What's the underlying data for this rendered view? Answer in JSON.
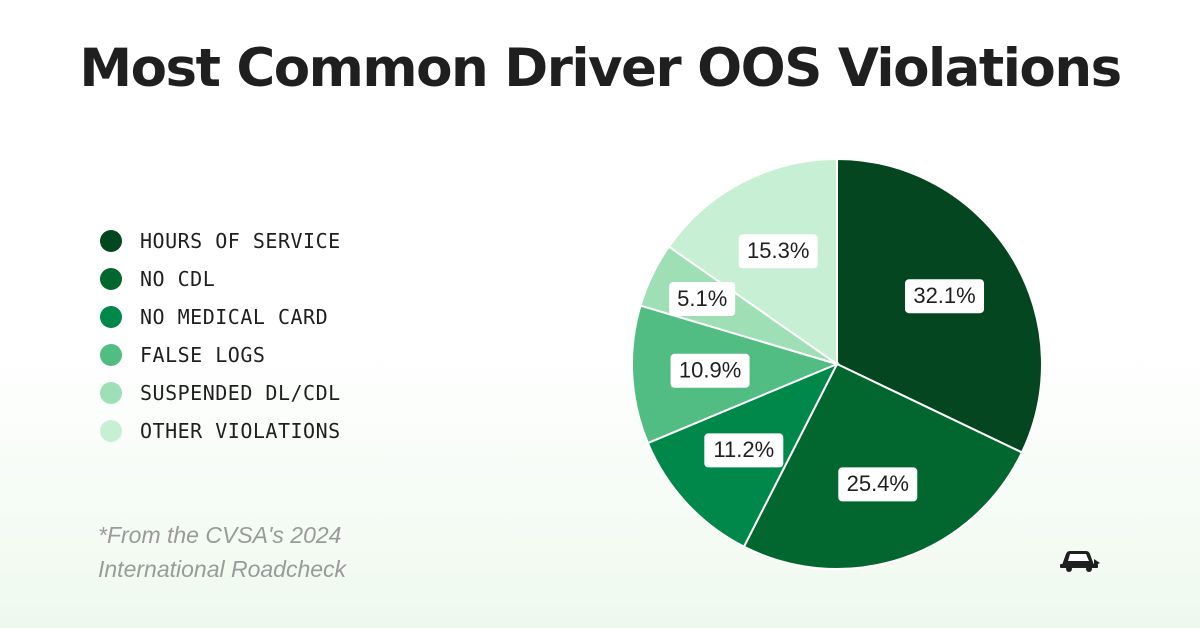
{
  "title": "Most Common Driver OOS Violations",
  "footnote": "*From the CVSA's 2024 International Roadcheck",
  "chart_data": {
    "type": "pie",
    "title": "Most Common Driver OOS Violations",
    "legend_position": "left",
    "slices": [
      {
        "name": "HOURS OF SERVICE",
        "value": 32.1,
        "label": "32.1%",
        "color": "#03461f"
      },
      {
        "name": "NO CDL",
        "value": 25.4,
        "label": "25.4%",
        "color": "#02672f"
      },
      {
        "name": "NO MEDICAL CARD",
        "value": 11.2,
        "label": "11.2%",
        "color": "#00874a"
      },
      {
        "name": "FALSE LOGS",
        "value": 10.9,
        "label": "10.9%",
        "color": "#52bd82"
      },
      {
        "name": "SUSPENDED DL/CDL",
        "value": 5.1,
        "label": "5.1%",
        "color": "#9edfb6"
      },
      {
        "name": "OTHER VIOLATIONS",
        "value": 15.3,
        "label": "15.3%",
        "color": "#c6efd4"
      }
    ]
  },
  "logo_icon": "truck-logo-icon"
}
